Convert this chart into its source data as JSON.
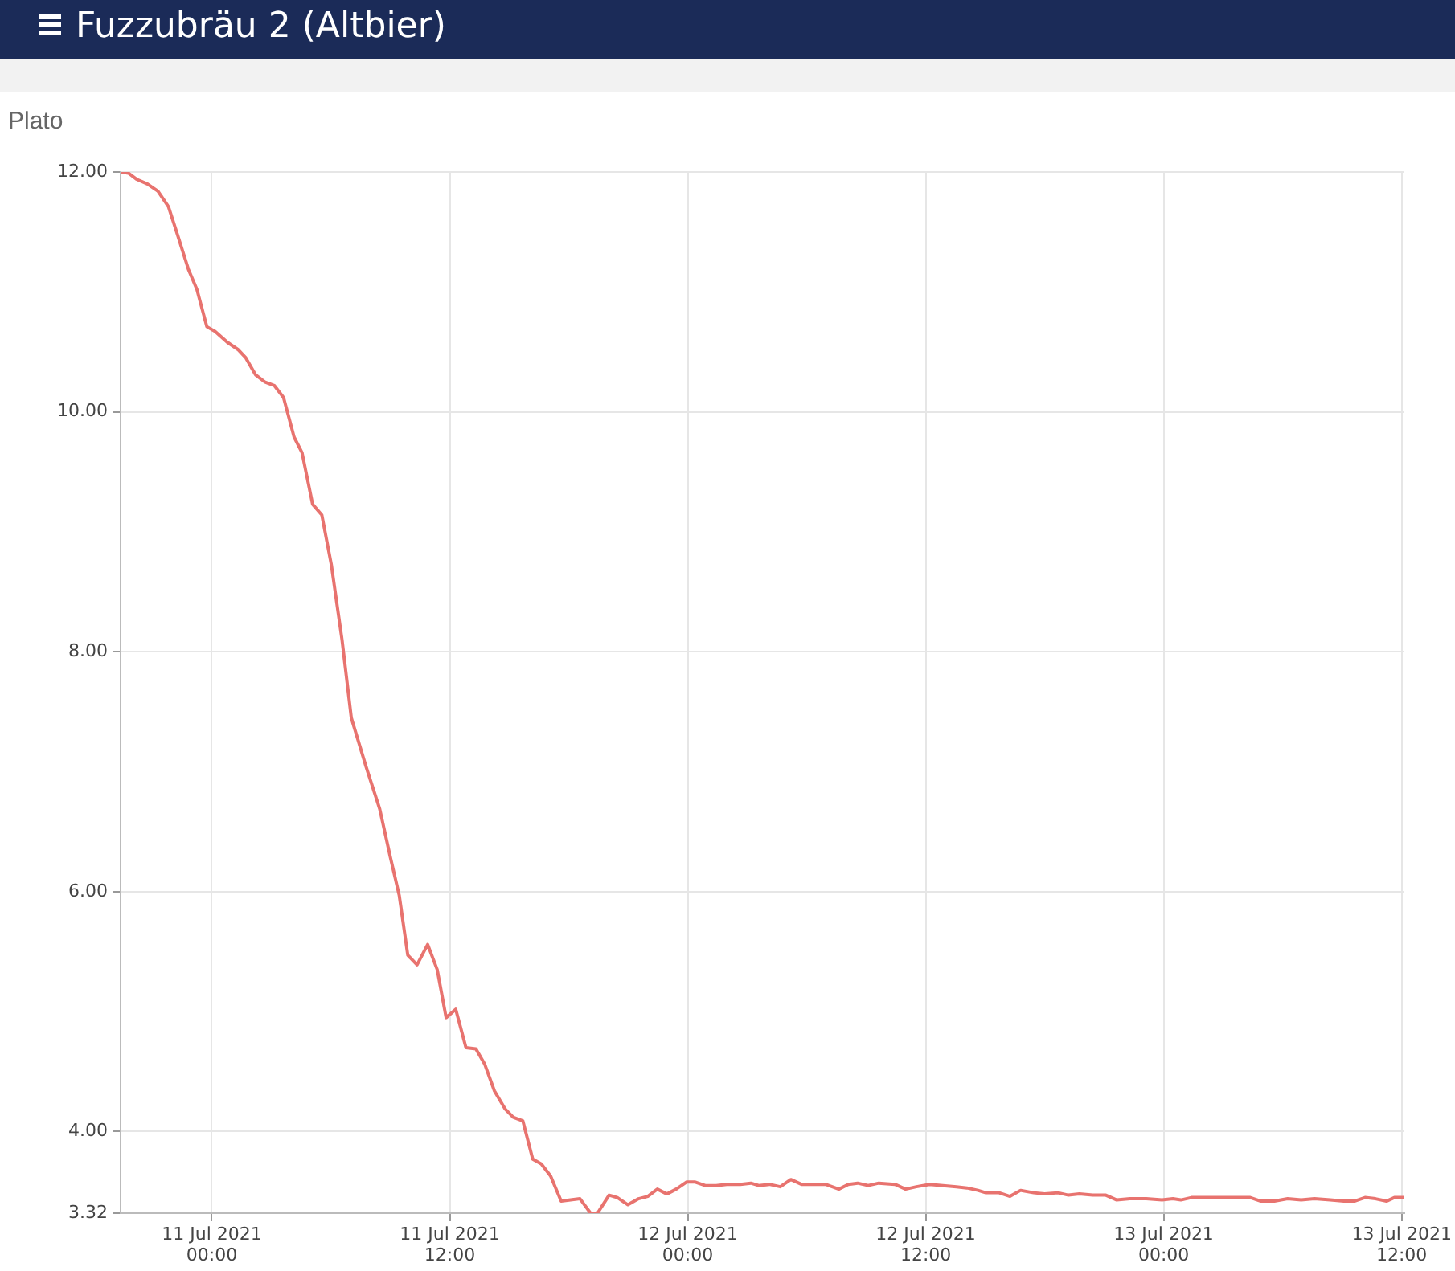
{
  "chart_data": {
    "type": "line",
    "title": "Fuzzubräu 2 (Altbier)",
    "ylabel": "Plato",
    "x": [
      "2021-07-10T19:24",
      "2021-07-10T19:48",
      "2021-07-10T20:12",
      "2021-07-10T20:45",
      "2021-07-10T21:17",
      "2021-07-10T21:49",
      "2021-07-10T22:17",
      "2021-07-10T22:49",
      "2021-07-10T23:15",
      "2021-07-10T23:45",
      "2021-07-11T00:10",
      "2021-07-11T00:47",
      "2021-07-11T01:19",
      "2021-07-11T01:43",
      "2021-07-11T02:12",
      "2021-07-11T02:40",
      "2021-07-11T03:09",
      "2021-07-11T03:37",
      "2021-07-11T04:09",
      "2021-07-11T04:33",
      "2021-07-11T05:05",
      "2021-07-11T05:33",
      "2021-07-11T06:02",
      "2021-07-11T06:34",
      "2021-07-11T07:02",
      "2021-07-11T07:47",
      "2021-07-11T08:28",
      "2021-07-11T09:00",
      "2021-07-11T09:27",
      "2021-07-11T09:53",
      "2021-07-11T10:21",
      "2021-07-11T10:53",
      "2021-07-11T11:22",
      "2021-07-11T11:49",
      "2021-07-11T12:18",
      "2021-07-11T12:49",
      "2021-07-11T13:19",
      "2021-07-11T13:46",
      "2021-07-11T14:15",
      "2021-07-11T14:47",
      "2021-07-11T15:12",
      "2021-07-11T15:41",
      "2021-07-11T16:11",
      "2021-07-11T16:37",
      "2021-07-11T17:05",
      "2021-07-11T17:37",
      "2021-07-11T18:34",
      "2021-07-11T19:06",
      "2021-07-11T19:27",
      "2021-07-11T20:02",
      "2021-07-11T20:27",
      "2021-07-11T20:59",
      "2021-07-11T21:31",
      "2021-07-11T21:59",
      "2021-07-11T22:28",
      "2021-07-11T22:57",
      "2021-07-11T23:25",
      "2021-07-11T23:57",
      "2021-07-12T00:21",
      "2021-07-12T00:53",
      "2021-07-12T01:26",
      "2021-07-12T01:58",
      "2021-07-12T02:39",
      "2021-07-12T03:11",
      "2021-07-12T03:35",
      "2021-07-12T04:07",
      "2021-07-12T04:40",
      "2021-07-12T05:12",
      "2021-07-12T05:44",
      "2021-07-12T06:17",
      "2021-07-12T06:57",
      "2021-07-12T07:37",
      "2021-07-12T08:06",
      "2021-07-12T08:34",
      "2021-07-12T09:06",
      "2021-07-12T09:38",
      "2021-07-12T10:27",
      "2021-07-12T10:59",
      "2021-07-12T11:32",
      "2021-07-12T12:12",
      "2021-07-12T12:52",
      "2021-07-12T13:33",
      "2021-07-12T14:05",
      "2021-07-12T14:38",
      "2021-07-12T15:02",
      "2021-07-12T15:42",
      "2021-07-12T16:15",
      "2021-07-12T16:47",
      "2021-07-12T17:27",
      "2021-07-12T18:00",
      "2021-07-12T18:40",
      "2021-07-12T19:12",
      "2021-07-12T19:45",
      "2021-07-12T20:25",
      "2021-07-12T21:05",
      "2021-07-12T21:38",
      "2021-07-12T22:18",
      "2021-07-12T23:07",
      "2021-07-12T23:55",
      "2021-07-13T00:28",
      "2021-07-13T00:52",
      "2021-07-13T01:24",
      "2021-07-13T02:12",
      "2021-07-13T03:17",
      "2021-07-13T04:22",
      "2021-07-13T04:54",
      "2021-07-13T05:35",
      "2021-07-13T06:15",
      "2021-07-13T06:56",
      "2021-07-13T07:36",
      "2021-07-13T08:24",
      "2021-07-13T09:05",
      "2021-07-13T09:37",
      "2021-07-13T10:09",
      "2021-07-13T10:41",
      "2021-07-13T11:14",
      "2021-07-13T11:38",
      "2021-07-13T12:07"
    ],
    "series": [
      {
        "color": "#e8736f",
        "values": [
          12.0,
          11.99,
          11.94,
          11.9,
          11.84,
          11.71,
          11.47,
          11.19,
          11.02,
          10.71,
          10.67,
          10.58,
          10.52,
          10.45,
          10.31,
          10.25,
          10.22,
          10.12,
          9.79,
          9.66,
          9.23,
          9.14,
          8.72,
          8.1,
          7.45,
          7.04,
          6.69,
          6.29,
          5.97,
          5.47,
          5.39,
          5.56,
          5.35,
          4.95,
          5.02,
          4.7,
          4.69,
          4.56,
          4.34,
          4.19,
          4.12,
          4.09,
          3.77,
          3.73,
          3.63,
          3.42,
          3.44,
          3.32,
          3.32,
          3.47,
          3.45,
          3.39,
          3.44,
          3.46,
          3.52,
          3.48,
          3.52,
          3.58,
          3.58,
          3.55,
          3.55,
          3.56,
          3.56,
          3.57,
          3.55,
          3.56,
          3.54,
          3.6,
          3.56,
          3.56,
          3.56,
          3.52,
          3.56,
          3.57,
          3.55,
          3.57,
          3.56,
          3.52,
          3.54,
          3.56,
          3.55,
          3.54,
          3.53,
          3.51,
          3.49,
          3.49,
          3.46,
          3.51,
          3.49,
          3.48,
          3.49,
          3.47,
          3.48,
          3.47,
          3.47,
          3.43,
          3.44,
          3.44,
          3.43,
          3.44,
          3.43,
          3.45,
          3.45,
          3.45,
          3.45,
          3.42,
          3.42,
          3.44,
          3.43,
          3.44,
          3.43,
          3.42,
          3.42,
          3.45,
          3.44,
          3.42,
          3.45,
          3.45
        ]
      }
    ],
    "xlim": [
      "2021-07-10T19:24",
      "2021-07-13T12:07"
    ],
    "xticks": [
      {
        "value": "2021-07-11T00:00",
        "label": "11 Jul 2021\n00:00"
      },
      {
        "value": "2021-07-11T12:00",
        "label": "11 Jul 2021\n12:00"
      },
      {
        "value": "2021-07-12T00:00",
        "label": "12 Jul 2021\n00:00"
      },
      {
        "value": "2021-07-12T12:00",
        "label": "12 Jul 2021\n12:00"
      },
      {
        "value": "2021-07-13T00:00",
        "label": "13 Jul 2021\n00:00"
      },
      {
        "value": "2021-07-13T12:00",
        "label": "13 Jul 2021\n12:00"
      }
    ],
    "ylim": [
      3.32,
      12
    ],
    "yticks": [
      3.32,
      {
        "value": 4,
        "label": "4.00"
      },
      {
        "value": 6,
        "label": "6.00"
      },
      {
        "value": 8,
        "label": "8.00"
      },
      {
        "value": 10,
        "label": "10.00"
      },
      {
        "value": 12,
        "label": "12.00"
      }
    ],
    "grid": true,
    "marker": "none"
  }
}
